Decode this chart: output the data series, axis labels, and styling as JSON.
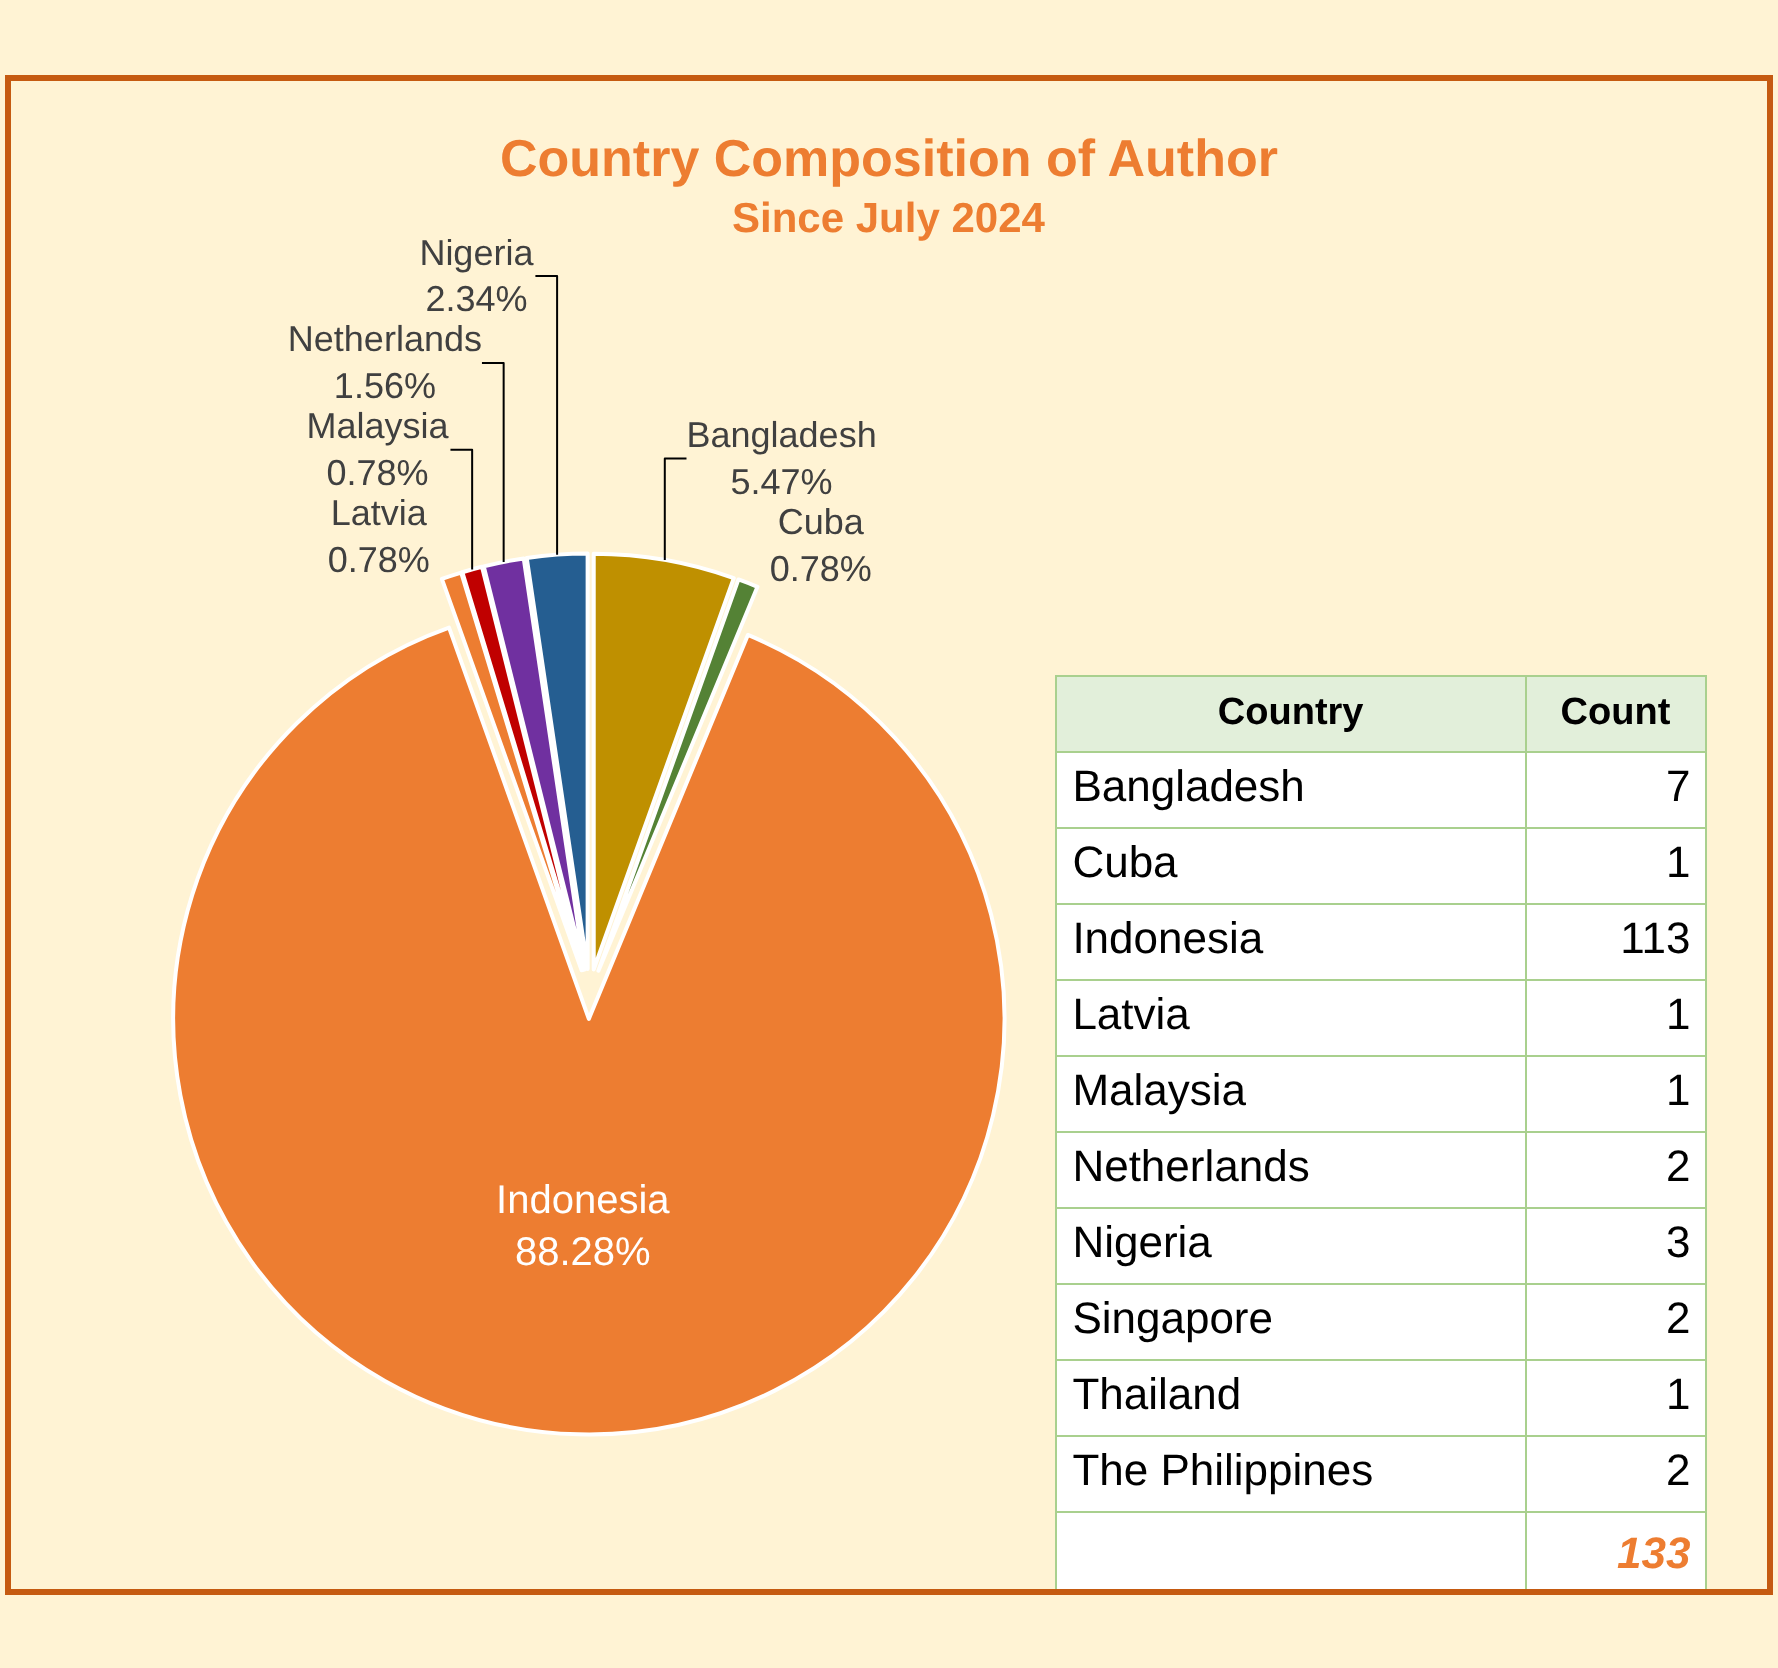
{
  "chart_data": [
    {
      "type": "pie",
      "title": "Country Composition of Author",
      "subtitle": "Since July 2024",
      "categories": [
        "Bangladesh",
        "Cuba",
        "Indonesia",
        "Latvia",
        "Malaysia",
        "Netherlands",
        "Nigeria"
      ],
      "values": [
        5.47,
        0.78,
        88.28,
        0.78,
        0.78,
        1.56,
        2.34
      ],
      "colors": [
        "#bf9000",
        "#548235",
        "#ed7d31",
        "#ed7d31",
        "#c00000",
        "#7030a0",
        "#255e91"
      ],
      "value_labels": [
        "5.47%",
        "0.78%",
        "88.28%",
        "0.78%",
        "0.78%",
        "1.56%",
        "2.34%"
      ]
    },
    {
      "type": "other",
      "xlabel": "Country",
      "ylabel": "Count",
      "categories": [
        "Bangladesh",
        "Cuba",
        "Indonesia",
        "Latvia",
        "Malaysia",
        "Netherlands",
        "Nigeria",
        "Singapore",
        "Thailand",
        "The Philippines"
      ],
      "values": [
        7,
        1,
        113,
        1,
        1,
        2,
        3,
        2,
        1,
        2
      ],
      "data_labels": true,
      "totals": [
        "133"
      ]
    }
  ]
}
